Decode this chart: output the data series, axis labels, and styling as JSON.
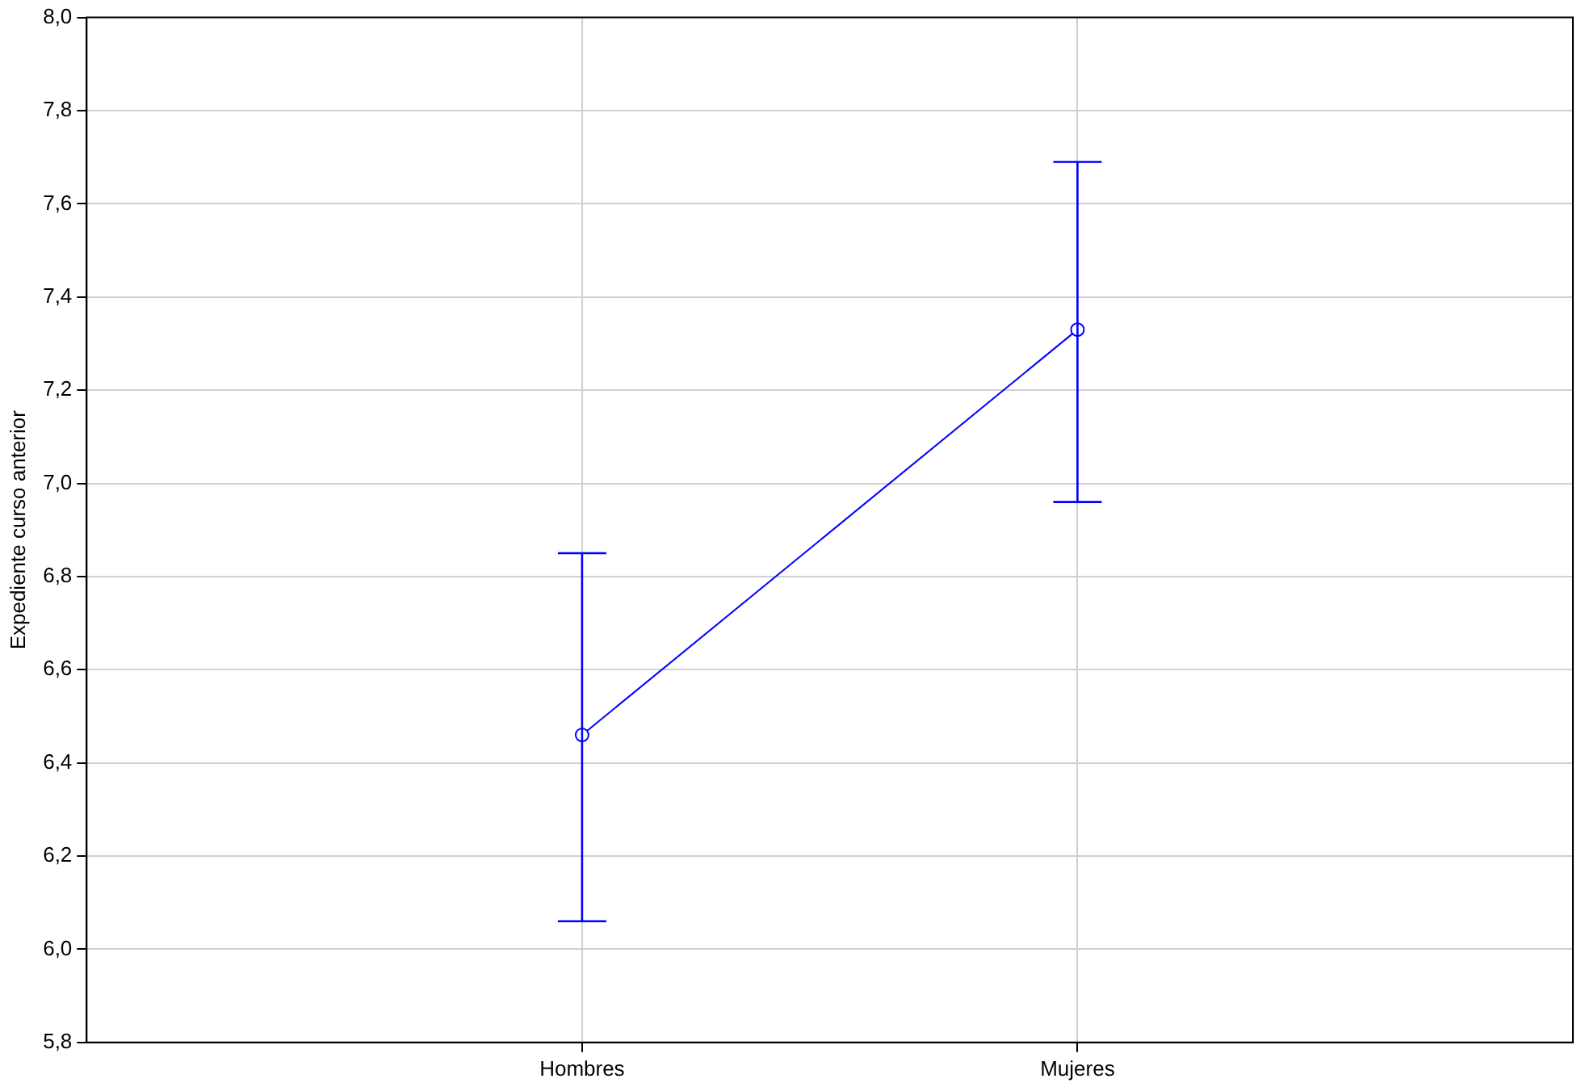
{
  "chart_data": {
    "type": "line",
    "ylabel": "Expediente curso anterior",
    "categories": [
      "Hombres",
      "Mujeres"
    ],
    "series": [
      {
        "color": "#0000ff",
        "values": [
          6.46,
          7.33
        ],
        "errors": [
          [
            6.06,
            6.85
          ],
          [
            6.96,
            7.69
          ]
        ]
      }
    ],
    "ylim": [
      5.8,
      8.0
    ],
    "yticks": [
      {
        "value": 5.8,
        "label": "5,8"
      },
      {
        "value": 6.0,
        "label": "6,0"
      },
      {
        "value": 6.2,
        "label": "6,2"
      },
      {
        "value": 6.4,
        "label": "6,4"
      },
      {
        "value": 6.6,
        "label": "6,6"
      },
      {
        "value": 6.8,
        "label": "6,8"
      },
      {
        "value": 7.0,
        "label": "7,0"
      },
      {
        "value": 7.2,
        "label": "7,2"
      },
      {
        "value": 7.4,
        "label": "7,4"
      },
      {
        "value": 7.6,
        "label": "7,6"
      },
      {
        "value": 7.8,
        "label": "7,8"
      },
      {
        "value": 8.0,
        "label": "8,0"
      }
    ],
    "grid": true,
    "marker": "circle",
    "line_style": "solid",
    "legend": false
  }
}
